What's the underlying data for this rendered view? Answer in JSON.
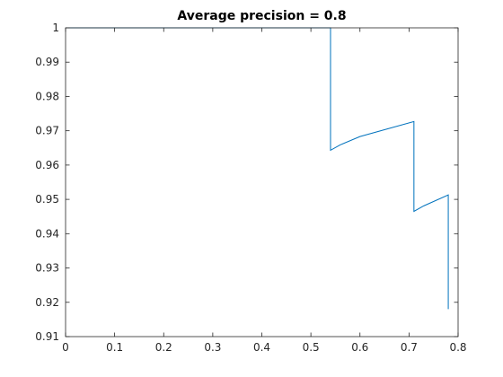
{
  "chart_data": {
    "type": "line",
    "title": "Average precision = 0.8",
    "xlabel": "",
    "ylabel": "",
    "xlim": [
      0,
      0.8
    ],
    "ylim": [
      0.91,
      1.0
    ],
    "x_ticks": [
      "0",
      "0.1",
      "0.2",
      "0.3",
      "0.4",
      "0.5",
      "0.6",
      "0.7",
      "0.8"
    ],
    "y_ticks": [
      "0.91",
      "0.92",
      "0.93",
      "0.94",
      "0.95",
      "0.96",
      "0.97",
      "0.98",
      "0.99",
      "1"
    ],
    "grid": false,
    "series": [
      {
        "color": "#0072BD",
        "x": [
          0,
          0.54,
          0.54,
          0.56,
          0.6,
          0.65,
          0.71,
          0.71,
          0.71,
          0.73,
          0.78,
          0.78,
          0.78
        ],
        "y": [
          1.0,
          1.0,
          0.9643,
          0.9659,
          0.9683,
          0.9703,
          0.9727,
          0.9727,
          0.9465,
          0.9481,
          0.9513,
          0.9513,
          0.918
        ]
      }
    ]
  }
}
